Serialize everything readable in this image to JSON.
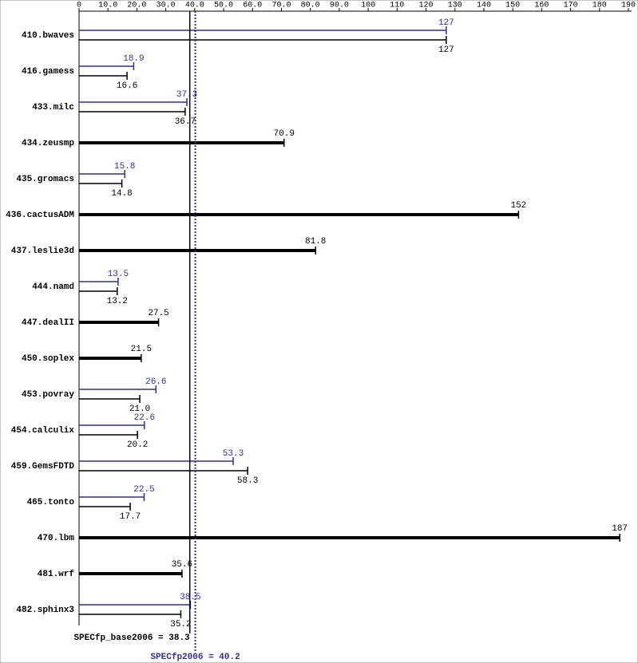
{
  "chart_data": {
    "type": "bar",
    "categories": [
      "410.bwaves",
      "416.gamess",
      "433.milc",
      "434.zeusmp",
      "435.gromacs",
      "436.cactusADM",
      "437.leslie3d",
      "444.namd",
      "447.dealII",
      "450.soplex",
      "453.povray",
      "454.calculix",
      "459.GemsFDTD",
      "465.tonto",
      "470.lbm",
      "481.wrf",
      "482.sphinx3"
    ],
    "series": [
      {
        "color": "#2f2f9a",
        "values": [
          127,
          18.9,
          37.3,
          null,
          15.8,
          null,
          null,
          13.5,
          null,
          null,
          26.6,
          22.6,
          53.3,
          22.5,
          null,
          null,
          38.5
        ]
      },
      {
        "color": "#000000",
        "values": [
          127,
          16.6,
          36.7,
          70.9,
          14.8,
          152,
          81.8,
          13.2,
          27.5,
          21.5,
          21.0,
          20.2,
          58.3,
          17.7,
          187,
          35.6,
          35.2
        ],
        "value_labels": [
          "127",
          "16.6",
          "36.7",
          "70.9",
          "14.8",
          "152",
          "81.8",
          "13.2",
          "27.5",
          "21.5",
          "21.0",
          "20.2",
          "58.3",
          "17.7",
          "187",
          "35.6",
          "35.2"
        ]
      }
    ],
    "xlim": [
      0,
      190
    ],
    "xticks": [
      0,
      {
        "value": 10,
        "label": "10.0"
      },
      {
        "value": 20,
        "label": "20.0"
      },
      {
        "value": 30,
        "label": "30.0"
      },
      {
        "value": 40,
        "label": "40.0"
      },
      {
        "value": 50,
        "label": "50.0"
      },
      {
        "value": 60,
        "label": "60.0"
      },
      {
        "value": 70,
        "label": "70.0"
      },
      {
        "value": 80,
        "label": "80.0"
      },
      {
        "value": 90,
        "label": "90.0"
      },
      100,
      110,
      120,
      130,
      140,
      150,
      160,
      170,
      180,
      190
    ],
    "reference_lines": [
      {
        "value": 38.3,
        "label": "SPECfp_base2006 = 38.3",
        "color": "#000000",
        "style": "solid"
      },
      {
        "value": 40.2,
        "label": "SPECfp2006 = 40.2",
        "color": "#2f2f9a",
        "style": "dotted"
      }
    ]
  }
}
